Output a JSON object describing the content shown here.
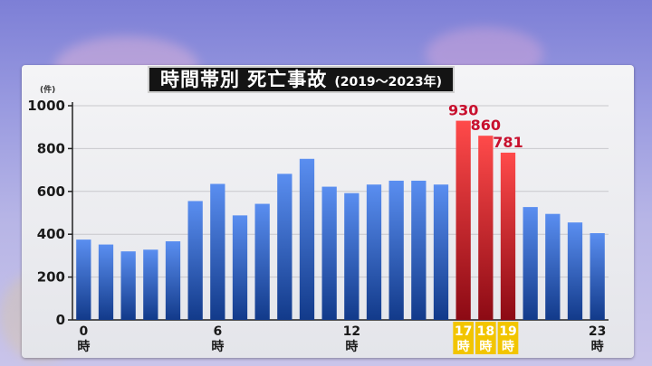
{
  "title": "時間帯別 死亡事故",
  "subtitle": "(2019～2023年)",
  "colors": {
    "normal_top": "#5a8ef0",
    "normal_bottom": "#123a8a",
    "highlight_top": "#ff4a4a",
    "highlight_bottom": "#8c0a14",
    "highlight_label_fill": "#f2c500",
    "highlight_value": "#c8102e"
  },
  "chart_data": {
    "type": "bar",
    "title": "時間帯別 死亡事故",
    "subtitle": "(2019～2023年)",
    "unit": "(件)",
    "ylim": [
      0,
      1000
    ],
    "yticks": [
      0,
      200,
      400,
      600,
      800,
      1000
    ],
    "grid": true,
    "categories": [
      "0",
      "1",
      "2",
      "3",
      "4",
      "5",
      "6",
      "7",
      "8",
      "9",
      "10",
      "11",
      "12",
      "13",
      "14",
      "15",
      "16",
      "17",
      "18",
      "19",
      "20",
      "21",
      "22",
      "23"
    ],
    "values": [
      375,
      352,
      320,
      328,
      367,
      555,
      635,
      488,
      542,
      682,
      752,
      622,
      592,
      632,
      650,
      650,
      632,
      930,
      860,
      781,
      527,
      495,
      455,
      405
    ],
    "highlight": [
      "17",
      "18",
      "19"
    ],
    "x_tick_labels": [
      {
        "category": "0",
        "num": "0",
        "suffix": "時"
      },
      {
        "category": "6",
        "num": "6",
        "suffix": "時"
      },
      {
        "category": "12",
        "num": "12",
        "suffix": "時"
      },
      {
        "category": "17",
        "num": "17",
        "suffix": "時"
      },
      {
        "category": "18",
        "num": "18",
        "suffix": "時"
      },
      {
        "category": "19",
        "num": "19",
        "suffix": "時"
      },
      {
        "category": "23",
        "num": "23",
        "suffix": "時"
      }
    ],
    "data_labels": [
      {
        "category": "17",
        "text": "930"
      },
      {
        "category": "18",
        "text": "860"
      },
      {
        "category": "19",
        "text": "781"
      }
    ]
  }
}
